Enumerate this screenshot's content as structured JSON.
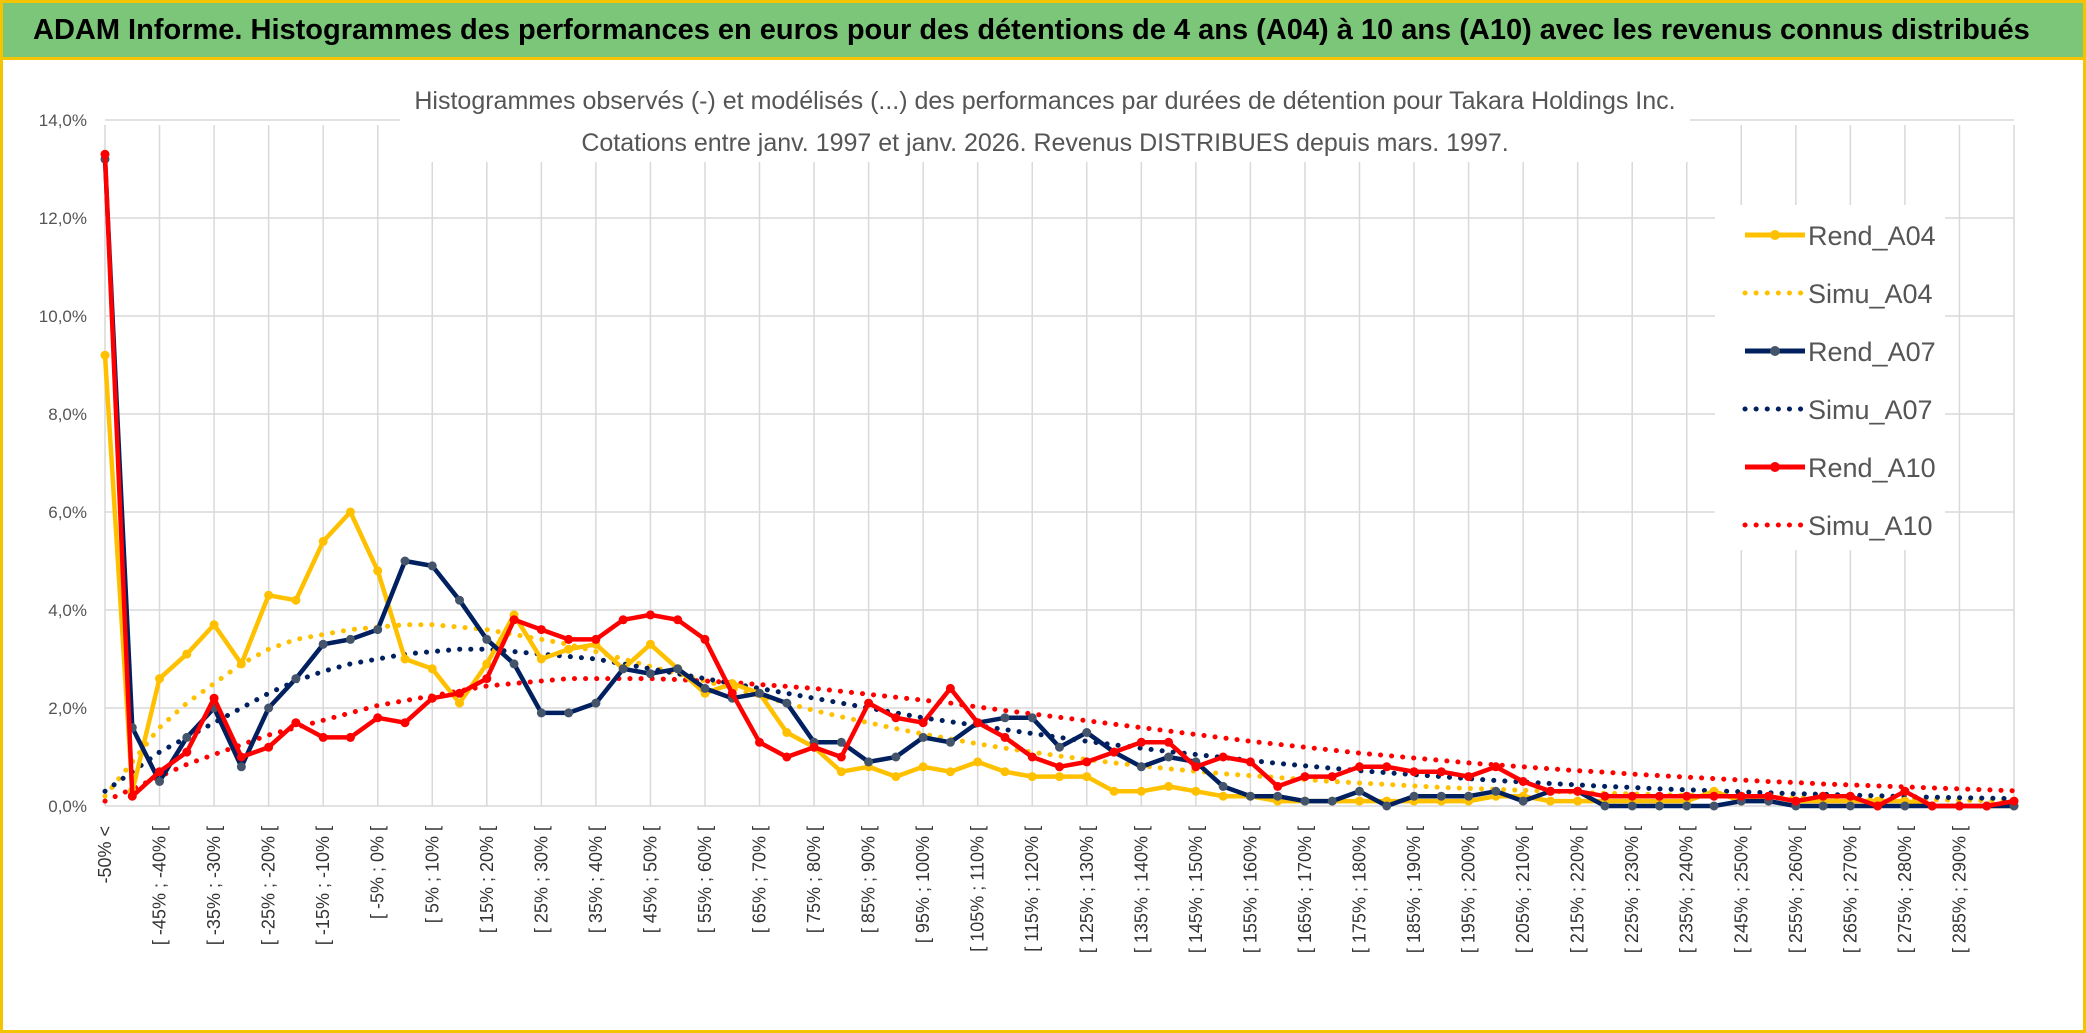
{
  "banner": {
    "title": "ADAM Informe. Histogrammes des performances en euros pour des détentions de 4 ans (A04) à 10 ans (A10) avec les revenus connus distribués"
  },
  "chart_data": {
    "type": "line",
    "title_line1": "Histogrammes observés (-) et modélisés (...) des performances par durées de détention pour Takara Holdings Inc.",
    "title_line2": "Cotations entre janv. 1997 et janv. 2026. Revenus DISTRIBUES depuis mars. 1997.",
    "ylim": [
      0,
      14
    ],
    "y_ticks": [
      "0,0%",
      "2,0%",
      "4,0%",
      "6,0%",
      "8,0%",
      "10,0%",
      "12,0%",
      "14,0%"
    ],
    "y_tick_values": [
      0,
      2,
      4,
      6,
      8,
      10,
      12,
      14
    ],
    "grid": "on",
    "legend_position": "right",
    "categories": [
      "-50% <",
      "[ -50% ; -45% [",
      "[ -45% ; -40% [",
      "[ -40% ; -35% [",
      "[ -35% ; -30% [",
      "[ -30% ; -25% [",
      "[ -25% ; -20% [",
      "[ -20% ; -15% [",
      "[ -15% ; -10% [",
      "[ -10% ; -5% [",
      "[ -5% ; 0% [",
      "[ 0% ; 5% [",
      "[ 5% ; 10% [",
      "[ 10% ; 15% [",
      "[ 15% ; 20% [",
      "[ 20% ; 25% [",
      "[ 25% ; 30% [",
      "[ 30% ; 35% [",
      "[ 35% ; 40% [",
      "[ 40% ; 45% [",
      "[ 45% ; 50% [",
      "[ 50% ; 55% [",
      "[ 55% ; 60% [",
      "[ 60% ; 65% [",
      "[ 65% ; 70% [",
      "[ 70% ; 75% [",
      "[ 75% ; 80% [",
      "[ 80% ; 85% [",
      "[ 85% ; 90% [",
      "[ 90% ; 95% [",
      "[ 95% ; 100% [",
      "[ 100% ; 105% [",
      "[ 105% ; 110% [",
      "[ 110% ; 115% [",
      "[ 115% ; 120% [",
      "[ 120% ; 125% [",
      "[ 125% ; 130% [",
      "[ 130% ; 135% [",
      "[ 135% ; 140% [",
      "[ 140% ; 145% [",
      "[ 145% ; 150% [",
      "[ 150% ; 155% [",
      "[ 155% ; 160% [",
      "[ 160% ; 165% [",
      "[ 165% ; 170% [",
      "[ 170% ; 175% [",
      "[ 175% ; 180% [",
      "[ 180% ; 185% [",
      "[ 185% ; 190% [",
      "[ 190% ; 195% [",
      "[ 195% ; 200% [",
      "[ 200% ; 205% [",
      "[ 205% ; 210% [",
      "[ 210% ; 215% [",
      "[ 215% ; 220% [",
      "[ 220% ; 225% [",
      "[ 225% ; 230% [",
      "[ 230% ; 235% [",
      "[ 235% ; 240% [",
      "[ 240% ; 245% [",
      "[ 245% ; 250% [",
      "[ 250% ; 255% [",
      "[ 255% ; 260% [",
      "[ 260% ; 265% [",
      "[ 265% ; 270% [",
      "[ 270% ; 275% [",
      "[ 275% ; 280% [",
      "[ 280% ; 285% [",
      "[ 285% ; 290% [",
      "[ 290% ; 295% [",
      "[ 295% ; 300% ["
    ],
    "visible_x_labels": [
      "-50% <",
      "[ -45% ; -40% [",
      "[ -35% ; -30% [",
      "[ -25% ; -20% [",
      "[ -15% ; -10% [",
      "[ -5% ; 0% [",
      "[ 5% ; 10% [",
      "[ 15% ; 20% [",
      "[ 25% ; 30% [",
      "[ 35% ; 40% [",
      "[ 45% ; 50% [",
      "[ 55% ; 60% [",
      "[ 65% ; 70% [",
      "[ 75% ; 80% [",
      "[ 85% ; 90% [",
      "[ 95% ; 100% [",
      "[ 105% ; 110% [",
      "[ 115% ; 120% [",
      "[ 125% ; 130% [",
      "[ 135% ; 140% [",
      "[ 145% ; 150% [",
      "[ 155% ; 160% [",
      "[ 165% ; 170% [",
      "[ 175% ; 180% [",
      "[ 185% ; 190% [",
      "[ 195% ; 200% [",
      "[ 205% ; 210% [",
      "[ 215% ; 220% [",
      "[ 225% ; 230% [",
      "[ 235% ; 240% [",
      "[ 245% ; 250% [",
      "[ 255% ; 260% [",
      "[ 265% ; 270% [",
      "[ 275% ; 280% [",
      "[ 285% ; 290% ["
    ],
    "series": [
      {
        "name": "Rend_A04",
        "style": "solid",
        "color": "#FFC000",
        "values": [
          9.2,
          0.3,
          2.6,
          3.1,
          3.7,
          2.9,
          4.3,
          4.2,
          5.4,
          6.0,
          4.8,
          3.0,
          2.8,
          2.1,
          2.9,
          3.9,
          3.0,
          3.2,
          3.3,
          2.8,
          3.3,
          2.8,
          2.3,
          2.5,
          2.3,
          1.5,
          1.2,
          0.7,
          0.8,
          0.6,
          0.8,
          0.7,
          0.9,
          0.7,
          0.6,
          0.6,
          0.6,
          0.3,
          0.3,
          0.4,
          0.3,
          0.2,
          0.2,
          0.1,
          0.1,
          0.1,
          0.1,
          0.1,
          0.1,
          0.1,
          0.1,
          0.2,
          0.2,
          0.1,
          0.1,
          0.1,
          0.1,
          0.1,
          0.1,
          0.3,
          0.1,
          0.2,
          0.1,
          0.1,
          0.1,
          0.1,
          0.1,
          0.0,
          0.0,
          0.0,
          0.0
        ]
      },
      {
        "name": "Simu_A04",
        "style": "dotted",
        "color": "#FFC000",
        "values": [
          0.2,
          0.9,
          1.6,
          2.1,
          2.5,
          2.9,
          3.2,
          3.4,
          3.5,
          3.6,
          3.65,
          3.7,
          3.7,
          3.65,
          3.6,
          3.5,
          3.4,
          3.3,
          3.15,
          3.0,
          2.85,
          2.7,
          2.55,
          2.4,
          2.25,
          2.1,
          1.95,
          1.82,
          1.7,
          1.58,
          1.47,
          1.37,
          1.27,
          1.18,
          1.1,
          1.02,
          0.95,
          0.88,
          0.82,
          0.76,
          0.71,
          0.66,
          0.62,
          0.58,
          0.54,
          0.5,
          0.47,
          0.44,
          0.41,
          0.38,
          0.36,
          0.34,
          0.32,
          0.3,
          0.28,
          0.26,
          0.25,
          0.23,
          0.22,
          0.21,
          0.19,
          0.18,
          0.17,
          0.16,
          0.15,
          0.14,
          0.13,
          0.13,
          0.12,
          0.11,
          0.1
        ]
      },
      {
        "name": "Rend_A07",
        "style": "solid",
        "color": "#002060",
        "values": [
          13.2,
          1.6,
          0.5,
          1.4,
          2.0,
          0.8,
          2.0,
          2.6,
          3.3,
          3.4,
          3.6,
          5.0,
          4.9,
          4.2,
          3.4,
          2.9,
          1.9,
          1.9,
          2.1,
          2.8,
          2.7,
          2.8,
          2.4,
          2.2,
          2.3,
          2.1,
          1.3,
          1.3,
          0.9,
          1.0,
          1.4,
          1.3,
          1.7,
          1.8,
          1.8,
          1.2,
          1.5,
          1.1,
          0.8,
          1.0,
          0.9,
          0.4,
          0.2,
          0.2,
          0.1,
          0.1,
          0.3,
          0.0,
          0.2,
          0.2,
          0.2,
          0.3,
          0.1,
          0.3,
          0.3,
          0.0,
          0.0,
          0.0,
          0.0,
          0.0,
          0.1,
          0.1,
          0.0,
          0.0,
          0.0,
          0.0,
          0.0,
          0.0,
          0.0,
          0.0,
          0.0
        ]
      },
      {
        "name": "Simu_A07",
        "style": "dotted",
        "color": "#002060",
        "values": [
          0.3,
          0.7,
          1.1,
          1.4,
          1.7,
          2.0,
          2.3,
          2.55,
          2.75,
          2.9,
          3.0,
          3.1,
          3.15,
          3.2,
          3.2,
          3.15,
          3.1,
          3.05,
          3.0,
          2.9,
          2.8,
          2.7,
          2.6,
          2.5,
          2.4,
          2.3,
          2.2,
          2.1,
          2.0,
          1.9,
          1.8,
          1.72,
          1.64,
          1.56,
          1.48,
          1.4,
          1.32,
          1.25,
          1.18,
          1.11,
          1.05,
          0.99,
          0.93,
          0.87,
          0.82,
          0.77,
          0.72,
          0.68,
          0.64,
          0.6,
          0.56,
          0.52,
          0.49,
          0.46,
          0.43,
          0.4,
          0.38,
          0.35,
          0.33,
          0.31,
          0.29,
          0.27,
          0.25,
          0.24,
          0.22,
          0.21,
          0.19,
          0.18,
          0.17,
          0.16,
          0.15
        ]
      },
      {
        "name": "Rend_A10",
        "style": "solid",
        "color": "#FF0000",
        "values": [
          13.3,
          0.2,
          0.7,
          1.1,
          2.2,
          1.0,
          1.2,
          1.7,
          1.4,
          1.4,
          1.8,
          1.7,
          2.2,
          2.3,
          2.6,
          3.8,
          3.6,
          3.4,
          3.4,
          3.8,
          3.9,
          3.8,
          3.4,
          2.3,
          1.3,
          1.0,
          1.2,
          1.0,
          2.1,
          1.8,
          1.7,
          2.4,
          1.7,
          1.4,
          1.0,
          0.8,
          0.9,
          1.1,
          1.3,
          1.3,
          0.8,
          1.0,
          0.9,
          0.4,
          0.6,
          0.6,
          0.8,
          0.8,
          0.7,
          0.7,
          0.6,
          0.8,
          0.5,
          0.3,
          0.3,
          0.2,
          0.2,
          0.2,
          0.2,
          0.2,
          0.2,
          0.2,
          0.1,
          0.2,
          0.2,
          0.0,
          0.3,
          0.0,
          0.0,
          0.0,
          0.1
        ]
      },
      {
        "name": "Simu_A10",
        "style": "dotted",
        "color": "#FF0000",
        "values": [
          0.1,
          0.35,
          0.6,
          0.85,
          1.05,
          1.25,
          1.45,
          1.6,
          1.75,
          1.9,
          2.05,
          2.15,
          2.25,
          2.35,
          2.45,
          2.5,
          2.55,
          2.6,
          2.6,
          2.6,
          2.6,
          2.58,
          2.55,
          2.52,
          2.48,
          2.44,
          2.4,
          2.34,
          2.28,
          2.22,
          2.16,
          2.1,
          2.02,
          1.95,
          1.88,
          1.81,
          1.74,
          1.67,
          1.6,
          1.53,
          1.46,
          1.39,
          1.32,
          1.26,
          1.2,
          1.14,
          1.08,
          1.03,
          0.98,
          0.93,
          0.88,
          0.84,
          0.8,
          0.76,
          0.72,
          0.69,
          0.65,
          0.62,
          0.59,
          0.56,
          0.53,
          0.5,
          0.48,
          0.45,
          0.43,
          0.41,
          0.39,
          0.37,
          0.35,
          0.33,
          0.31
        ]
      }
    ]
  }
}
